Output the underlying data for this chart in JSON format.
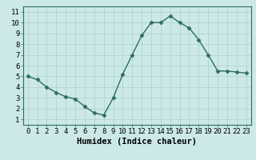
{
  "x": [
    0,
    1,
    2,
    3,
    4,
    5,
    6,
    7,
    8,
    9,
    10,
    11,
    12,
    13,
    14,
    15,
    16,
    17,
    18,
    19,
    20,
    21,
    22,
    23
  ],
  "y": [
    5.0,
    4.7,
    4.0,
    3.5,
    3.1,
    2.9,
    2.2,
    1.6,
    1.4,
    3.0,
    5.2,
    7.0,
    8.8,
    10.0,
    10.0,
    10.6,
    10.0,
    9.5,
    8.4,
    7.0,
    5.5,
    5.5,
    5.4,
    5.3
  ],
  "line_color": "#2e6e5e",
  "marker": "D",
  "marker_size": 2.5,
  "linewidth": 1.0,
  "xlabel": "Humidex (Indice chaleur)",
  "xlim": [
    -0.5,
    23.5
  ],
  "ylim": [
    0.5,
    11.5
  ],
  "yticks": [
    1,
    2,
    3,
    4,
    5,
    6,
    7,
    8,
    9,
    10,
    11
  ],
  "xticks": [
    0,
    1,
    2,
    3,
    4,
    5,
    6,
    7,
    8,
    9,
    10,
    11,
    12,
    13,
    14,
    15,
    16,
    17,
    18,
    19,
    20,
    21,
    22,
    23
  ],
  "bg_color": "#cce8e8",
  "plot_bg_color": "#cce8e8",
  "grid_color": "#b0d4d4",
  "tick_label_fontsize": 6.5,
  "xlabel_fontsize": 7.5,
  "spine_color": "#2e6e5e"
}
